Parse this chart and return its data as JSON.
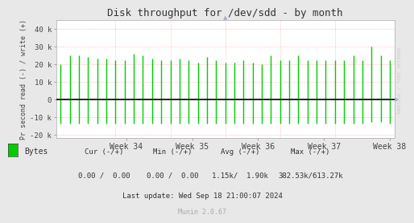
{
  "title": "Disk throughput for /dev/sdd - by month",
  "ylabel": "Pr second read (-) / write (+)",
  "background_color": "#e8e8e8",
  "plot_bg_color": "#ffffff",
  "grid_color": "#ff9999",
  "line_color": "#00cc00",
  "zero_line_color": "#000000",
  "ylim": [
    -22000,
    45000
  ],
  "yticks": [
    -20000,
    -10000,
    0,
    10000,
    20000,
    30000,
    40000
  ],
  "ytick_labels": [
    "-20 k",
    "-10 k",
    "0",
    "10 k",
    "20 k",
    "30 k",
    "40 k"
  ],
  "week_labels": [
    "Week 34",
    "Week 35",
    "Week 36",
    "Week 37",
    "Week 38"
  ],
  "watermark": "RRDTOOL / TOBI OETIKER",
  "munin_label": "Munin 2.0.67",
  "legend_label": "Bytes",
  "cur_neg": "0.00",
  "cur_pos": "0.00",
  "min_neg": "0.00",
  "min_pos": "0.00",
  "avg_neg": "1.15k/",
  "avg_pos": "1.90k",
  "max_neg": "382.53k/",
  "max_pos": "613.27k",
  "last_update": "Last update: Wed Sep 18 21:00:07 2024",
  "spike_data": [
    [
      20000,
      -14000
    ],
    [
      25000,
      -14000
    ],
    [
      25000,
      -14000
    ],
    [
      24000,
      -14000
    ],
    [
      23000,
      -14000
    ],
    [
      23000,
      -14000
    ],
    [
      22000,
      -14000
    ],
    [
      22000,
      -14000
    ],
    [
      26000,
      -14000
    ],
    [
      25000,
      -14000
    ],
    [
      23000,
      -14000
    ],
    [
      22000,
      -14000
    ],
    [
      22000,
      -14000
    ],
    [
      23000,
      -14000
    ],
    [
      22000,
      -14000
    ],
    [
      21000,
      -14000
    ],
    [
      24000,
      -14000
    ],
    [
      22000,
      -14000
    ],
    [
      21000,
      -14000
    ],
    [
      21000,
      -14000
    ],
    [
      22000,
      -14000
    ],
    [
      21000,
      -14000
    ],
    [
      20000,
      -14000
    ],
    [
      25000,
      -14000
    ],
    [
      22000,
      -14000
    ],
    [
      22000,
      -14000
    ],
    [
      25000,
      -14000
    ],
    [
      22000,
      -14000
    ],
    [
      22000,
      -14000
    ],
    [
      22000,
      -14000
    ],
    [
      22000,
      -14000
    ],
    [
      22000,
      -14000
    ],
    [
      25000,
      -14000
    ],
    [
      22000,
      -14000
    ],
    [
      30000,
      -13000
    ],
    [
      25000,
      -13000
    ],
    [
      22000,
      -14000
    ]
  ]
}
